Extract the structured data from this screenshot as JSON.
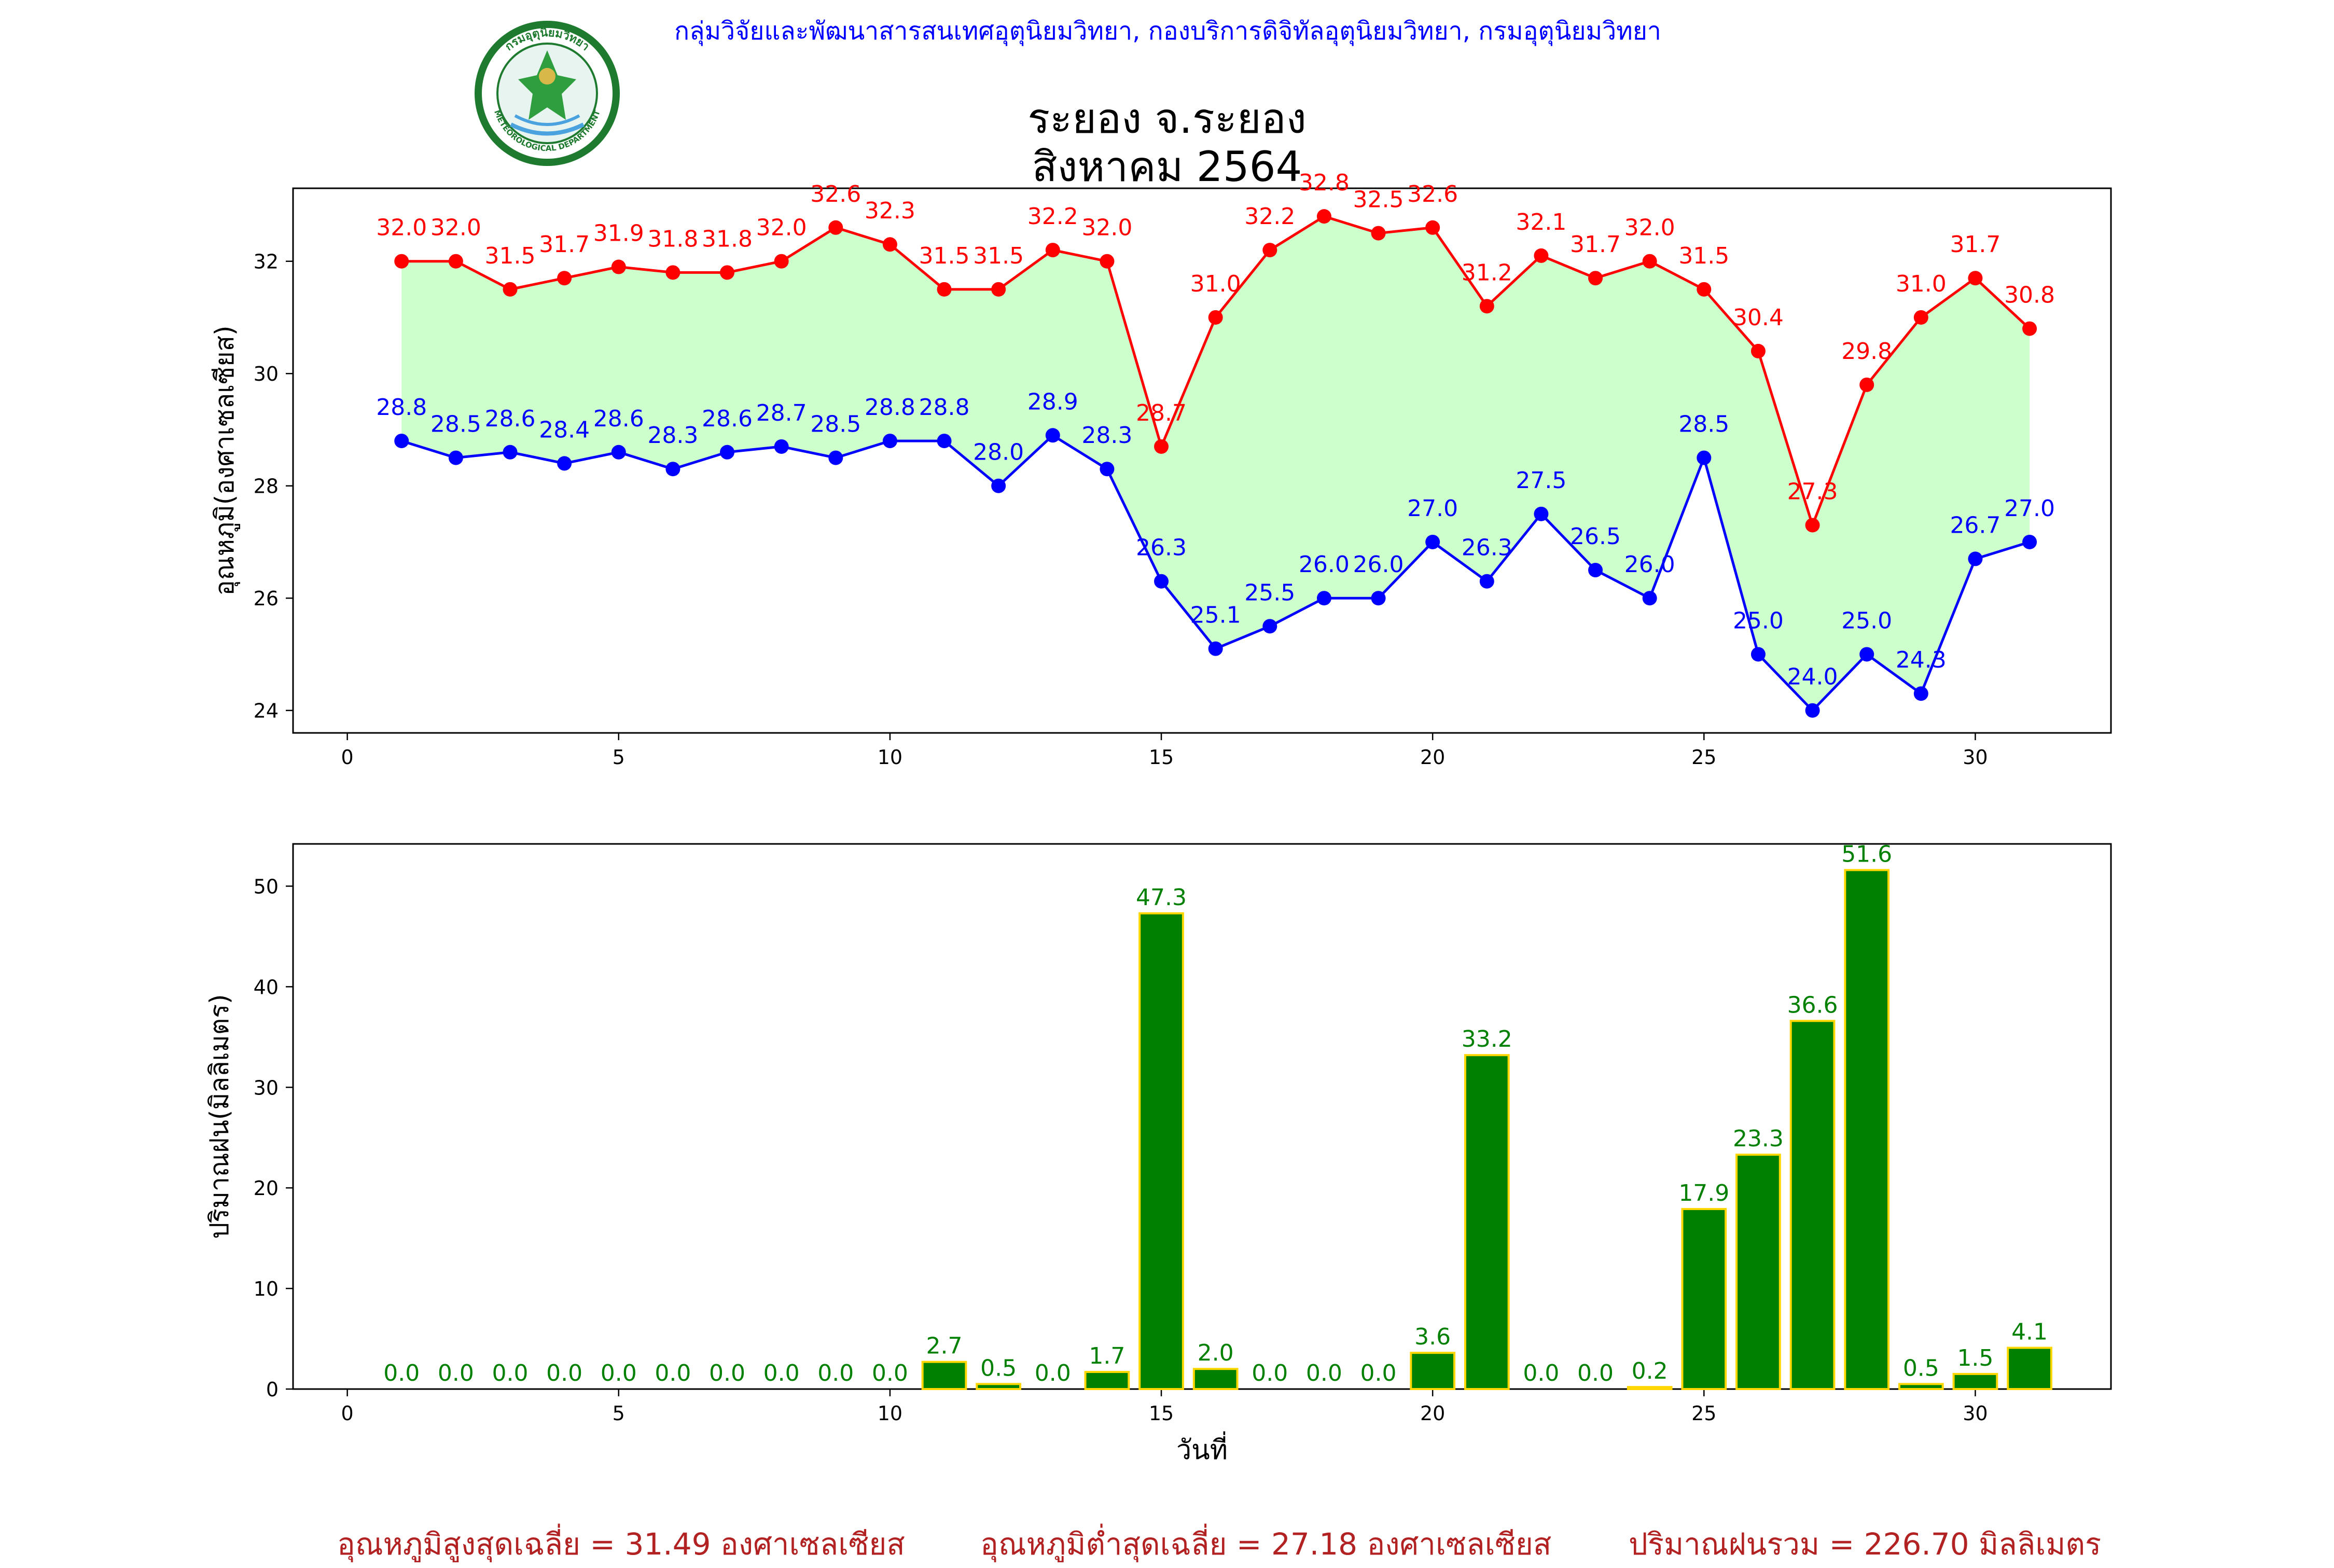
{
  "header": {
    "credit": "กลุ่มวิจัยและพัฒนาสารสนเทศอุตุนิยมวิทยา, กองบริการดิจิทัลอุตุนิยมวิทยา, กรมอุตุนิยมวิทยา",
    "title_line1": "ระยอง จ.ระยอง",
    "title_line2": "สิงหาคม 2564",
    "logo": {
      "top_text": "กรมอุตุนิยมวิทยา",
      "bottom_text": "METEOROLOGICAL DEPARTMENT"
    }
  },
  "footer": {
    "avg_max": "อุณหภูมิสูงสุดเฉลี่ย = 31.49 องศาเซลเซียส",
    "avg_min": "อุณหภูมิต่ำสุดเฉลี่ย = 27.18 องศาเซลเซียส",
    "total_rain": "ปริมาณฝนรวม = 226.70 มิลลิเมตร"
  },
  "colors": {
    "max_temp": "#ff0000",
    "min_temp": "#0000ff",
    "fill": "#ccffcc",
    "rain_bar": "#008000",
    "rain_edge": "#ffd700",
    "rain_label": "#008000",
    "footer": "#b22222",
    "credit": "#0000ff"
  },
  "chart_data": [
    {
      "type": "line",
      "ylabel": "อุณหภูมิ(องศาเซลเซียส)",
      "xlabel": "",
      "x": [
        1,
        2,
        3,
        4,
        5,
        6,
        7,
        8,
        9,
        10,
        11,
        12,
        13,
        14,
        15,
        16,
        17,
        18,
        19,
        20,
        21,
        22,
        23,
        24,
        25,
        26,
        27,
        28,
        29,
        30,
        31
      ],
      "xlim": [
        -1,
        32.5
      ],
      "ylim": [
        23.6,
        33.3
      ],
      "xticks": [
        0,
        5,
        10,
        15,
        20,
        25,
        30
      ],
      "yticks": [
        24,
        26,
        28,
        30,
        32
      ],
      "series": [
        {
          "values": [
            32.0,
            32.0,
            31.5,
            31.7,
            31.9,
            31.8,
            31.8,
            32.0,
            32.6,
            32.3,
            31.5,
            31.5,
            32.2,
            32.0,
            28.7,
            31.0,
            32.2,
            32.8,
            32.5,
            32.6,
            31.2,
            32.1,
            31.7,
            32.0,
            31.5,
            30.4,
            27.3,
            29.8,
            31.0,
            31.7,
            30.8
          ]
        },
        {
          "values": [
            28.8,
            28.5,
            28.6,
            28.4,
            28.6,
            28.3,
            28.6,
            28.7,
            28.5,
            28.8,
            28.8,
            28.0,
            28.9,
            28.3,
            26.3,
            25.1,
            25.5,
            26.0,
            26.0,
            27.0,
            26.3,
            27.5,
            26.5,
            26.0,
            28.5,
            25.0,
            24.0,
            25.0,
            24.3,
            26.7,
            27.0
          ]
        }
      ]
    },
    {
      "type": "bar",
      "ylabel": "ปริมาณฝน(มิลลิเมตร)",
      "xlabel": "วันที่",
      "x": [
        1,
        2,
        3,
        4,
        5,
        6,
        7,
        8,
        9,
        10,
        11,
        12,
        13,
        14,
        15,
        16,
        17,
        18,
        19,
        20,
        21,
        22,
        23,
        24,
        25,
        26,
        27,
        28,
        29,
        30,
        31
      ],
      "xlim": [
        -1,
        32.5
      ],
      "ylim": [
        0,
        54.2
      ],
      "xticks": [
        0,
        5,
        10,
        15,
        20,
        25,
        30
      ],
      "yticks": [
        0,
        10,
        20,
        30,
        40,
        50
      ],
      "values": [
        0.0,
        0.0,
        0.0,
        0.0,
        0.0,
        0.0,
        0.0,
        0.0,
        0.0,
        0.0,
        2.7,
        0.5,
        0.0,
        1.7,
        47.3,
        2.0,
        0.0,
        0.0,
        0.0,
        3.6,
        33.2,
        0.0,
        0.0,
        0.2,
        17.9,
        23.3,
        36.6,
        51.6,
        0.5,
        1.5,
        4.1
      ]
    }
  ]
}
